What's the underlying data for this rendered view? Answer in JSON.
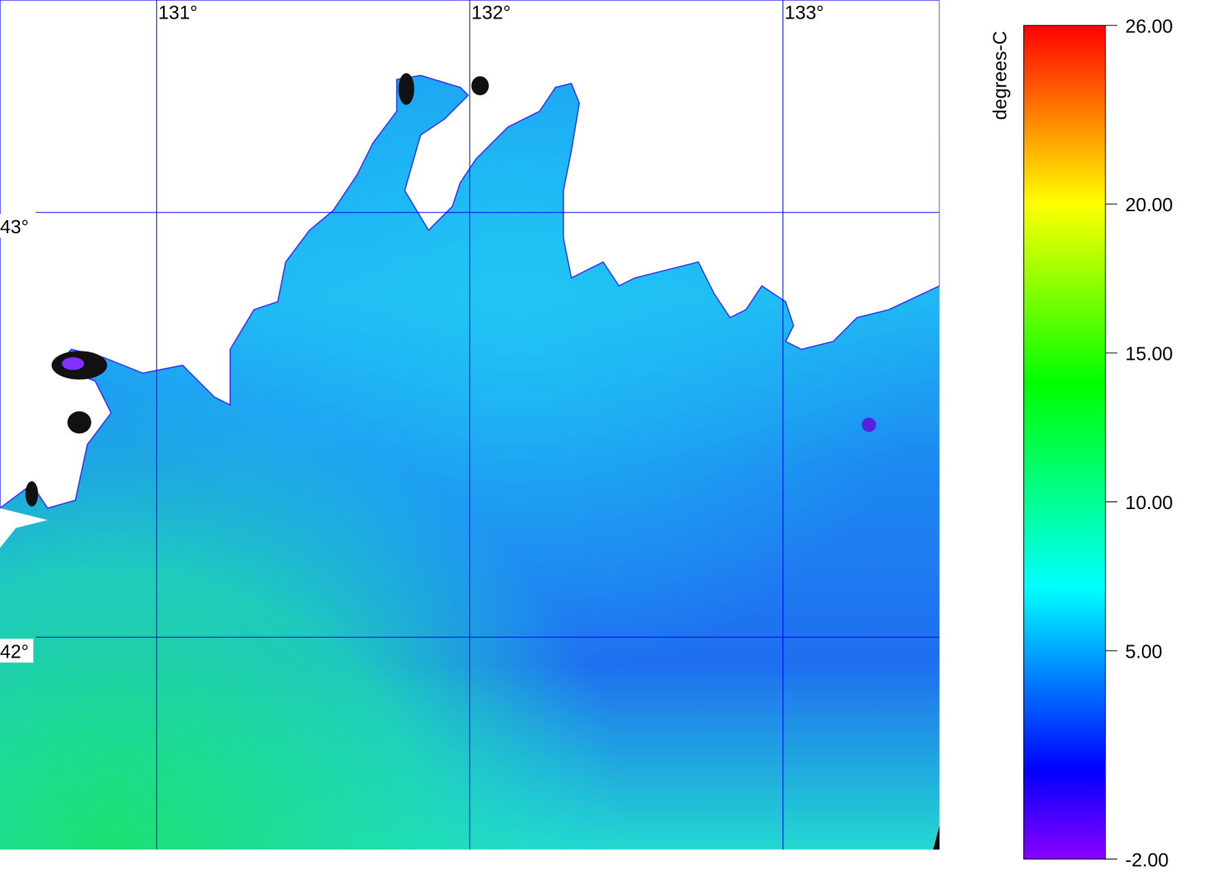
{
  "chart_data": {
    "type": "map",
    "xlim": [
      130.5,
      133.5
    ],
    "ylim": [
      41.5,
      43.5
    ],
    "xticks": [
      {
        "value": 131,
        "label": "131°"
      },
      {
        "value": 132,
        "label": "132°"
      },
      {
        "value": 133,
        "label": "133°"
      }
    ],
    "yticks": [
      {
        "value": 43,
        "label": "43°"
      },
      {
        "value": 42,
        "label": "42°"
      }
    ],
    "grid": true,
    "grid_color": "#0000ff",
    "colorbar": {
      "label": "degrees-C",
      "lim": [
        -2,
        26
      ],
      "ticks": [
        {
          "value": 26,
          "label": "26.00"
        },
        {
          "value": 20,
          "label": "20.00"
        },
        {
          "value": 15,
          "label": "15.00"
        },
        {
          "value": 10,
          "label": "10.00"
        },
        {
          "value": 5,
          "label": "5.00"
        },
        {
          "value": -2,
          "label": "-2.00"
        }
      ]
    }
  }
}
